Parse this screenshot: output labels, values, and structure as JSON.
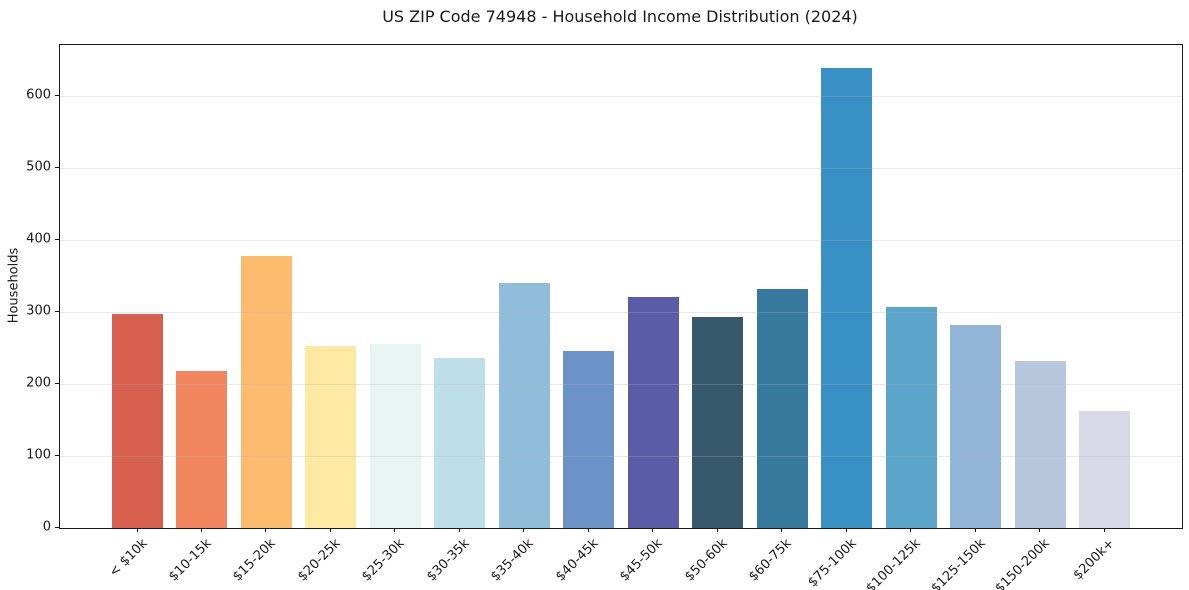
{
  "chart_data": {
    "type": "bar",
    "title": "US ZIP Code 74948 - Household Income Distribution (2024)",
    "xlabel": "",
    "ylabel": "Households",
    "categories": [
      "< $10k",
      "$10-15k",
      "$15-20k",
      "$20-25k",
      "$25-30k",
      "$30-35k",
      "$35-40k",
      "$40-45k",
      "$45-50k",
      "$50-60k",
      "$60-75k",
      "$75-100k",
      "$100-125k",
      "$125-150k",
      "$150-200k",
      "$200k+"
    ],
    "values": [
      297,
      218,
      378,
      253,
      256,
      236,
      340,
      246,
      321,
      293,
      332,
      639,
      307,
      282,
      232,
      162
    ],
    "bar_colors": [
      "#d6604d",
      "#f2875f",
      "#fdbb6e",
      "#fde9a2",
      "#e8f4f1",
      "#bedfe9",
      "#90bdda",
      "#6b93c8",
      "#5b5ca8",
      "#38596c",
      "#36799d",
      "#3990c4",
      "#5ba4ca",
      "#93b5d8",
      "#b7c7de",
      "#d7d9e6"
    ],
    "yticks": [
      0,
      100,
      200,
      300,
      400,
      500,
      600
    ],
    "ylim": [
      0,
      671
    ],
    "grid": true,
    "legend": false,
    "axis_color": "#1a1a1a",
    "grid_color": "rgba(178,178,195,0.30)"
  }
}
